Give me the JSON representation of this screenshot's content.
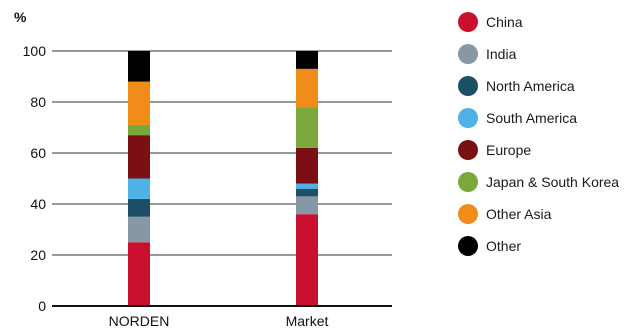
{
  "chart_data": {
    "type": "bar",
    "stacked": true,
    "ylabel": "%",
    "ylim": [
      0,
      100
    ],
    "yticks": [
      0,
      20,
      40,
      60,
      80,
      100
    ],
    "grid": true,
    "legend_position": "right",
    "categories": [
      "NORDEN",
      "Market"
    ],
    "series": [
      {
        "name": "China",
        "color": "#c8102e",
        "values": [
          25,
          36
        ]
      },
      {
        "name": "India",
        "color": "#8797a3",
        "values": [
          10,
          7
        ]
      },
      {
        "name": "North America",
        "color": "#1d4f66",
        "values": [
          7,
          3
        ]
      },
      {
        "name": "South America",
        "color": "#4db3e6",
        "values": [
          8,
          2
        ]
      },
      {
        "name": "Europe",
        "color": "#7a0f14",
        "values": [
          17,
          14
        ]
      },
      {
        "name": "Japan & South Korea",
        "color": "#7aa83a",
        "values": [
          4,
          16
        ]
      },
      {
        "name": "Other Asia",
        "color": "#f28c18",
        "values": [
          17,
          15
        ]
      },
      {
        "name": "Other",
        "color": "#000000",
        "values": [
          12,
          7
        ]
      }
    ]
  }
}
